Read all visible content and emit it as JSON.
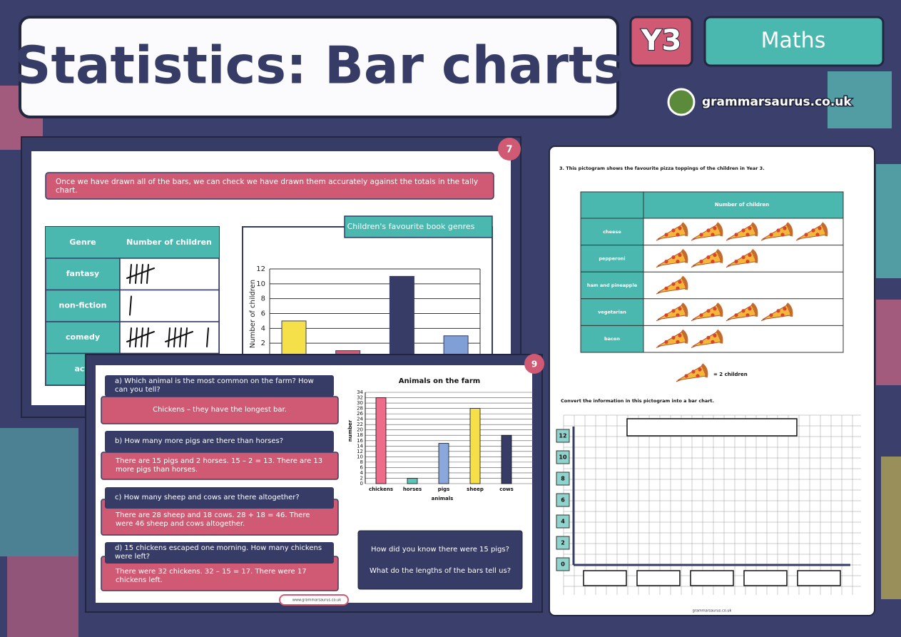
{
  "header": {
    "title": "Statistics: Bar charts",
    "year": "Y3",
    "subject": "Maths",
    "site": "grammarsaurus.co.uk"
  },
  "slide7": {
    "number": "7",
    "banner": "Once we have drawn all of the bars, we can check we have drawn them accurately against the totals in the tally chart.",
    "table_headers": [
      "Genre",
      "Number of children"
    ],
    "genres": [
      "fantasy",
      "non-fiction",
      "comedy",
      "acti"
    ],
    "tallies": [
      5,
      1,
      11
    ]
  },
  "slide9": {
    "number": "9",
    "questions": [
      "a) Which animal is the most common on the farm? How can you tell?",
      "b) How many more pigs are there than horses?",
      "c) How many sheep and cows are there altogether?",
      "d) 15 chickens escaped one morning. How many chickens were left?"
    ],
    "answers": [
      "Chickens – they have the longest bar.",
      "There are 15 pigs and 2 horses. 15 – 2 = 13. There are 13 more pigs than horses.",
      "There are 28 sheep and 18 cows. 28 + 18 = 46. There were 46 sheep and cows altogether.",
      "There were 32 chickens. 32 – 15 = 17. There were 17 chickens left."
    ],
    "prompts": [
      "How did you know there were 15 pigs?",
      "What do the lengths of the bars tell us?"
    ],
    "footer": "www.grammarsaurus.co.uk"
  },
  "chart_data": [
    {
      "type": "bar",
      "title": "Children's favourite book genres",
      "y_label": "Number of children",
      "values": [
        5,
        1,
        11,
        3
      ],
      "colors": [
        "#f6e04a",
        "#d05a74",
        "#363c66",
        "#7f9fd6"
      ],
      "ylim": [
        0,
        12
      ],
      "yticks": [
        2,
        4,
        6,
        8,
        10,
        12
      ],
      "grid": true
    },
    {
      "type": "bar",
      "title": "Animals on the farm",
      "x_label": "animals",
      "y_label": "number",
      "categories": [
        "chickens",
        "horses",
        "pigs",
        "sheep",
        "cows"
      ],
      "values": [
        32,
        2,
        15,
        28,
        18
      ],
      "colors": [
        "#ee6b8a",
        "#5cc4bb",
        "#8aa8dc",
        "#f6e04a",
        "#363c66"
      ],
      "ylim": [
        0,
        34
      ],
      "yticks": [
        0,
        2,
        4,
        6,
        8,
        10,
        12,
        14,
        16,
        18,
        20,
        22,
        24,
        26,
        28,
        30,
        32,
        34
      ],
      "grid": true
    }
  ],
  "worksheet": {
    "instruction": "3. This pictogram shows the favourite pizza toppings of the children in Year 3.",
    "table_header": "Number of children",
    "toppings": [
      "cheese",
      "pepperoni",
      "ham and pineapple",
      "vegetarian",
      "bacon"
    ],
    "counts": [
      5,
      3,
      1,
      4,
      2
    ],
    "key": "= 2 children",
    "task": "Convert the information in this pictogram into a bar chart.",
    "grid_yticks": [
      0,
      2,
      4,
      6,
      8,
      10,
      12
    ],
    "footer": "grammarsaurus.co.uk"
  }
}
